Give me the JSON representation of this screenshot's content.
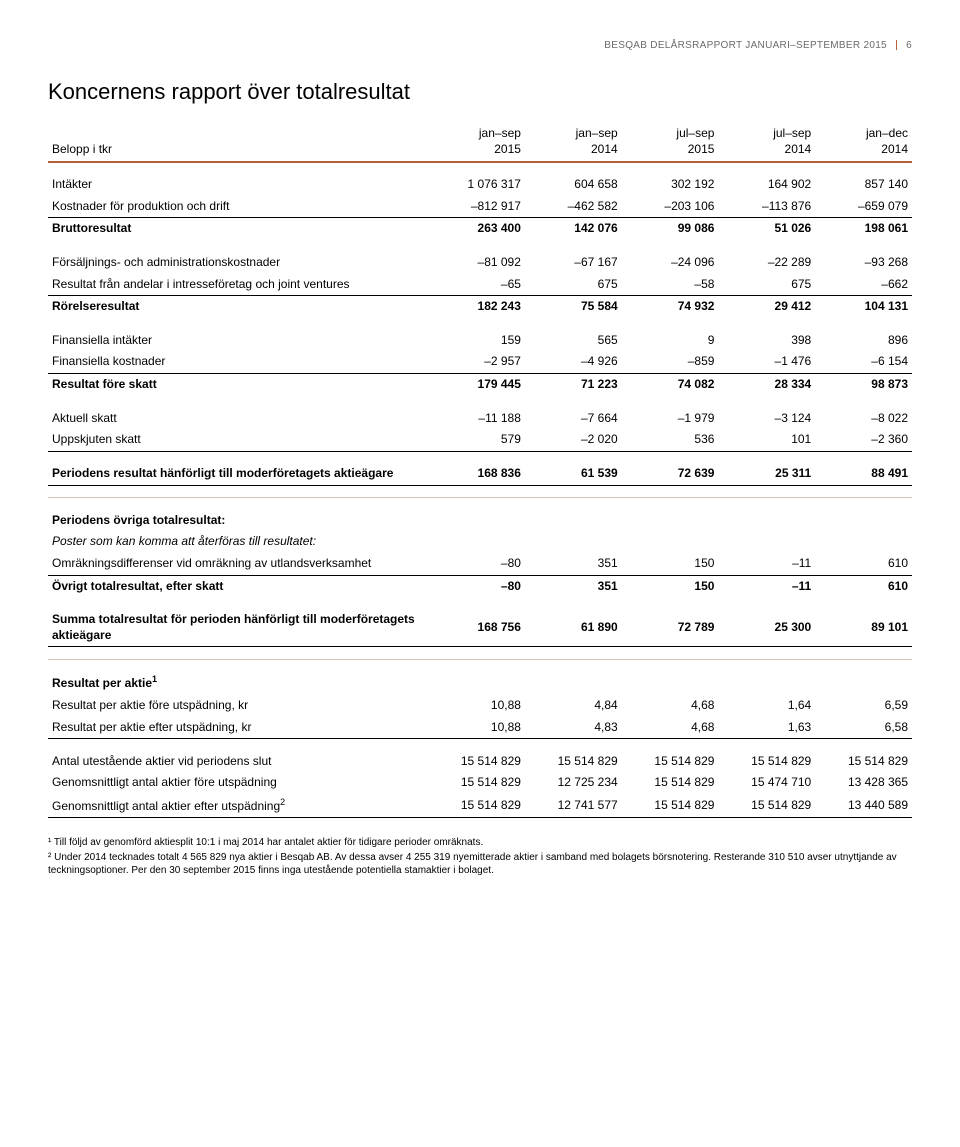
{
  "header": {
    "text": "BESQAB DELÅRSRAPPORT JANUARI–SEPTEMBER 2015",
    "page": "6"
  },
  "title": "Koncernens rapport över totalresultat",
  "columns": {
    "label": "Belopp i tkr",
    "c1a": "jan–sep",
    "c1b": "2015",
    "c2a": "jan–sep",
    "c2b": "2014",
    "c3a": "jul–sep",
    "c3b": "2015",
    "c4a": "jul–sep",
    "c4b": "2014",
    "c5a": "jan–dec",
    "c5b": "2014"
  },
  "rows": [
    {
      "type": "spacer"
    },
    {
      "label": "Intäkter",
      "v": [
        "1 076 317",
        "604 658",
        "302 192",
        "164 902",
        "857 140"
      ]
    },
    {
      "label": "Kostnader för produktion och drift",
      "v": [
        "–812 917",
        "–462 582",
        "–203 106",
        "–113 876",
        "–659 079"
      ],
      "bb": true
    },
    {
      "label": "Bruttoresultat",
      "v": [
        "263 400",
        "142 076",
        "99 086",
        "51 026",
        "198 061"
      ],
      "bold": true
    },
    {
      "type": "spacer"
    },
    {
      "label": "Försäljnings- och administrationskostnader",
      "v": [
        "–81 092",
        "–67 167",
        "–24 096",
        "–22 289",
        "–93 268"
      ]
    },
    {
      "label": "Resultat från andelar i intresseföretag och joint ventures",
      "v": [
        "–65",
        "675",
        "–58",
        "675",
        "–662"
      ],
      "bb": true
    },
    {
      "label": "Rörelseresultat",
      "v": [
        "182 243",
        "75 584",
        "74 932",
        "29 412",
        "104 131"
      ],
      "bold": true
    },
    {
      "type": "spacer"
    },
    {
      "label": "Finansiella intäkter",
      "v": [
        "159",
        "565",
        "9",
        "398",
        "896"
      ]
    },
    {
      "label": "Finansiella kostnader",
      "v": [
        "–2 957",
        "–4 926",
        "–859",
        "–1 476",
        "–6 154"
      ],
      "bb": true
    },
    {
      "label": "Resultat före skatt",
      "v": [
        "179 445",
        "71 223",
        "74 082",
        "28 334",
        "98 873"
      ],
      "bold": true
    },
    {
      "type": "spacer"
    },
    {
      "label": "Aktuell skatt",
      "v": [
        "–11 188",
        "–7 664",
        "–1 979",
        "–3 124",
        "–8 022"
      ]
    },
    {
      "label": "Uppskjuten skatt",
      "v": [
        "579",
        "–2 020",
        "536",
        "101",
        "–2 360"
      ],
      "bb": true
    },
    {
      "type": "spacer"
    },
    {
      "label": "Periodens resultat hänförligt till moderföretagets aktieägare",
      "v": [
        "168 836",
        "61 539",
        "72 639",
        "25 311",
        "88 491"
      ],
      "bold": true,
      "bb": true
    },
    {
      "type": "spacer"
    },
    {
      "type": "divider"
    },
    {
      "type": "spacer"
    },
    {
      "label": "Periodens övriga totalresultat:",
      "v": [
        "",
        "",
        "",
        "",
        ""
      ],
      "bold": true
    },
    {
      "label": "Poster som kan komma att återföras till resultatet:",
      "v": [
        "",
        "",
        "",
        "",
        ""
      ],
      "italic": true
    },
    {
      "label": "Omräkningsdifferenser vid omräkning av utlandsverksamhet",
      "v": [
        "–80",
        "351",
        "150",
        "–11",
        "610"
      ],
      "bb": true
    },
    {
      "label": "Övrigt totalresultat, efter skatt",
      "v": [
        "–80",
        "351",
        "150",
        "–11",
        "610"
      ],
      "bold": true
    },
    {
      "type": "spacer"
    },
    {
      "label": "Summa totalresultat för perioden hänförligt till moderföretagets aktieägare",
      "v": [
        "168 756",
        "61 890",
        "72 789",
        "25 300",
        "89 101"
      ],
      "bold": true,
      "bb": true
    },
    {
      "type": "spacer"
    },
    {
      "type": "divider"
    },
    {
      "type": "spacer"
    },
    {
      "label_html": "Resultat per aktie<sup>1</sup>",
      "v": [
        "",
        "",
        "",
        "",
        ""
      ],
      "bold": true
    },
    {
      "label": "Resultat per aktie före utspädning, kr",
      "v": [
        "10,88",
        "4,84",
        "4,68",
        "1,64",
        "6,59"
      ]
    },
    {
      "label": "Resultat per aktie efter utspädning, kr",
      "v": [
        "10,88",
        "4,83",
        "4,68",
        "1,63",
        "6,58"
      ],
      "bb": true
    },
    {
      "type": "spacer"
    },
    {
      "label": "Antal utestående aktier vid periodens slut",
      "v": [
        "15 514 829",
        "15 514 829",
        "15 514 829",
        "15 514 829",
        "15 514 829"
      ]
    },
    {
      "label": "Genomsnittligt antal aktier före utspädning",
      "v": [
        "15 514 829",
        "12 725 234",
        "15 514 829",
        "15 474 710",
        "13 428 365"
      ]
    },
    {
      "label_html": "Genomsnittligt antal aktier efter utspädning<sup>2</sup>",
      "v": [
        "15 514 829",
        "12 741 577",
        "15 514 829",
        "15 514 829",
        "13 440 589"
      ],
      "bb": true
    }
  ],
  "footnotes": [
    "¹ Till följd av genomförd aktiesplit 10:1 i maj 2014 har antalet aktier för tidigare perioder omräknats.",
    "² Under 2014 tecknades totalt 4 565 829 nya aktier i Besqab AB. Av dessa avser 4 255 319 nyemitterade aktier i samband med bolagets börsnotering. Resterande 310 510 avser utnyttjande av teckningsoptioner. Per den 30 september 2015 finns inga utestående potentiella stamaktier i bolaget."
  ],
  "style": {
    "accent_color": "#b2603b",
    "divider_color": "#d0c4b8",
    "body_font_size": 12,
    "title_font_size": 22,
    "footnote_font_size": 10,
    "background": "#ffffff"
  }
}
